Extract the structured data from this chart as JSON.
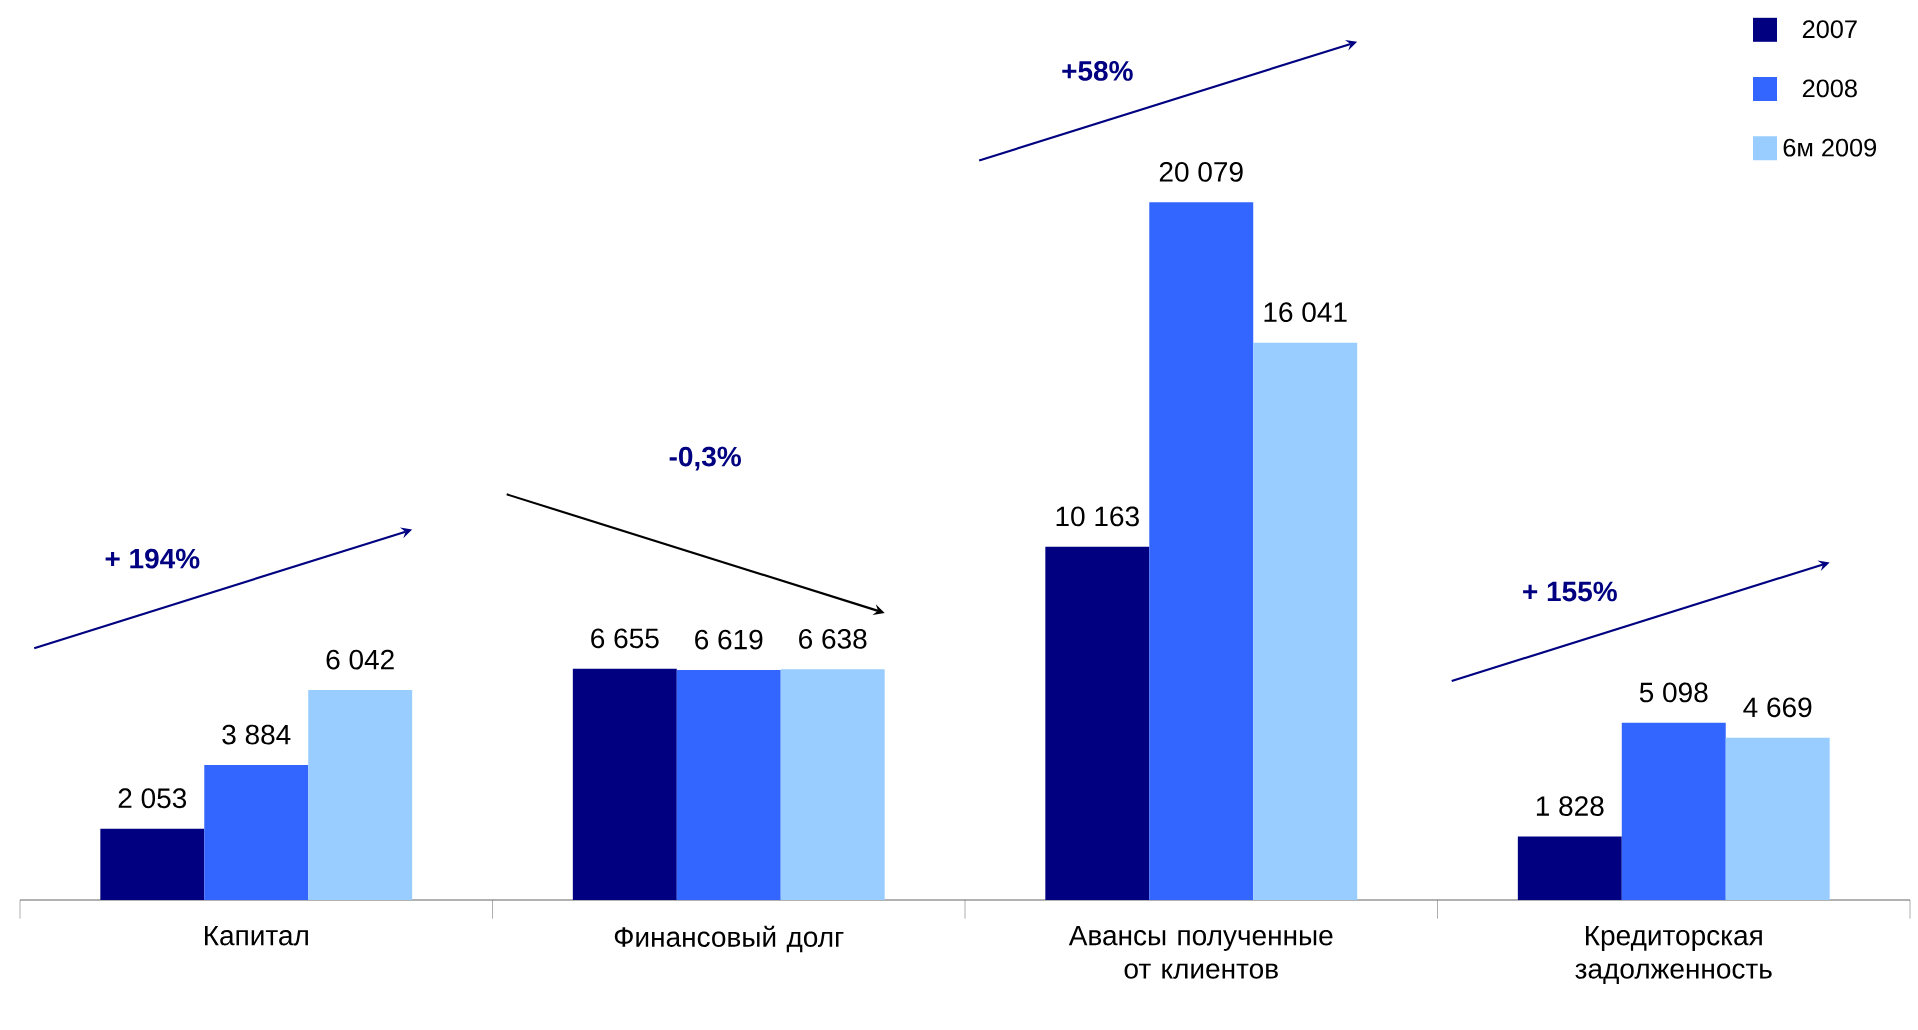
{
  "chart_data": {
    "type": "bar",
    "categories": [
      "Капитал",
      "Финансовый долг",
      "Авансы полученные от клиентов",
      "Кредиторская задолженность"
    ],
    "series": [
      {
        "name": "2007",
        "color": "#000080",
        "values": [
          2053,
          6655,
          10163,
          1828
        ],
        "value_labels": [
          "2 053",
          "6 655",
          "10 163",
          "1 828"
        ]
      },
      {
        "name": "2008",
        "color": "#3366ff",
        "values": [
          3884,
          6619,
          20079,
          5098
        ],
        "value_labels": [
          "3 884",
          "6 619",
          "20 079",
          "5 098"
        ]
      },
      {
        "name": "6м 2009",
        "color": "#99ccff",
        "values": [
          6042,
          6638,
          16041,
          4669
        ],
        "value_labels": [
          "6 042",
          "6 638",
          "16 041",
          "4 669"
        ]
      }
    ],
    "legend": "top right",
    "annotations": [
      "+ 194%",
      "-0,3%",
      "+58%",
      "+ 155%"
    ]
  }
}
